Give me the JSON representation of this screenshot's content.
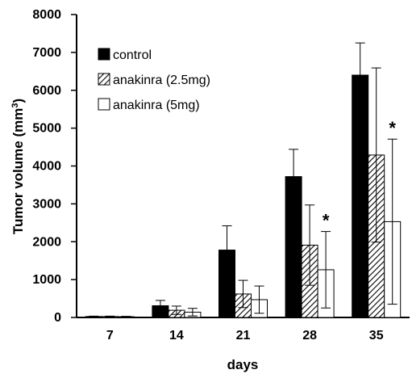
{
  "chart_data": {
    "type": "bar",
    "xlabel": "days",
    "ylabel": "Tumor volume (mm³)",
    "ylabel_base": "Tumor volume (mm",
    "ylabel_sup": "3",
    "ylabel_tail": ")",
    "ylim": [
      0,
      8000
    ],
    "yticks": [
      "0",
      "1000",
      "2000",
      "3000",
      "4000",
      "5000",
      "6000",
      "7000",
      "8000"
    ],
    "categories": [
      "7",
      "14",
      "21",
      "28",
      "35"
    ],
    "legend_position": "top-left",
    "grid": false,
    "significance_marker": "*",
    "series": [
      {
        "name": "control",
        "fill": "solid",
        "color": "#000000",
        "values": [
          25,
          310,
          1780,
          3720,
          6400
        ],
        "errors": [
          10,
          140,
          640,
          720,
          850
        ],
        "significant": [
          false,
          false,
          false,
          false,
          false
        ]
      },
      {
        "name": "anakinra (2.5mg)",
        "fill": "hatched",
        "color": "#000000",
        "values": [
          25,
          190,
          620,
          1910,
          4290
        ],
        "errors": [
          10,
          110,
          360,
          1060,
          2300
        ],
        "significant": [
          false,
          false,
          false,
          false,
          false
        ]
      },
      {
        "name": "anakinra (5mg)",
        "fill": "hollow",
        "color": "#ffffff",
        "values": [
          20,
          140,
          470,
          1260,
          2530
        ],
        "errors": [
          10,
          100,
          360,
          1010,
          2180
        ],
        "significant": [
          false,
          false,
          false,
          true,
          true
        ]
      }
    ]
  }
}
